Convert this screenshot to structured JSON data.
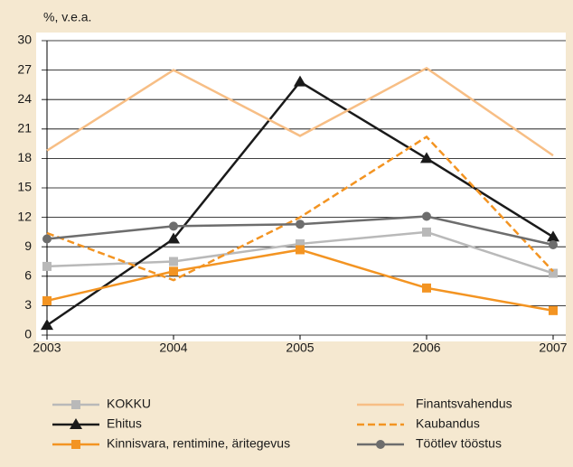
{
  "chart_data": {
    "type": "line",
    "y_label": "%, v.e.a.",
    "categories": [
      "2003",
      "2004",
      "2005",
      "2006",
      "2007"
    ],
    "ylim": [
      0,
      30
    ],
    "yticks": [
      0,
      3,
      6,
      9,
      12,
      15,
      18,
      21,
      24,
      27,
      30
    ],
    "grid": true,
    "series": [
      {
        "name": "KOKKU",
        "color": "#b9b9b9",
        "marker": "square",
        "dashed": false,
        "values": [
          7.0,
          7.5,
          9.3,
          10.5,
          6.3
        ]
      },
      {
        "name": "Ehitus",
        "color": "#1a1a1a",
        "marker": "triangle",
        "dashed": false,
        "values": [
          1.0,
          9.8,
          25.8,
          18.0,
          10.0
        ]
      },
      {
        "name": "Kinnisvara, rentimine, äritegevus",
        "color": "#f39422",
        "marker": "square",
        "dashed": false,
        "values": [
          3.5,
          6.5,
          8.7,
          4.8,
          2.5
        ]
      },
      {
        "name": "Finantsvahendus",
        "color": "#f7be85",
        "marker": "none",
        "dashed": false,
        "values": [
          18.8,
          27.0,
          20.3,
          27.2,
          18.3
        ]
      },
      {
        "name": "Kaubandus",
        "color": "#f39422",
        "marker": "none",
        "dashed": true,
        "values": [
          10.4,
          5.6,
          12.0,
          20.2,
          6.5
        ]
      },
      {
        "name": "Töötlev tööstus",
        "color": "#6d6d6d",
        "marker": "circle",
        "dashed": false,
        "values": [
          9.8,
          11.1,
          11.3,
          12.1,
          9.2
        ]
      }
    ]
  }
}
